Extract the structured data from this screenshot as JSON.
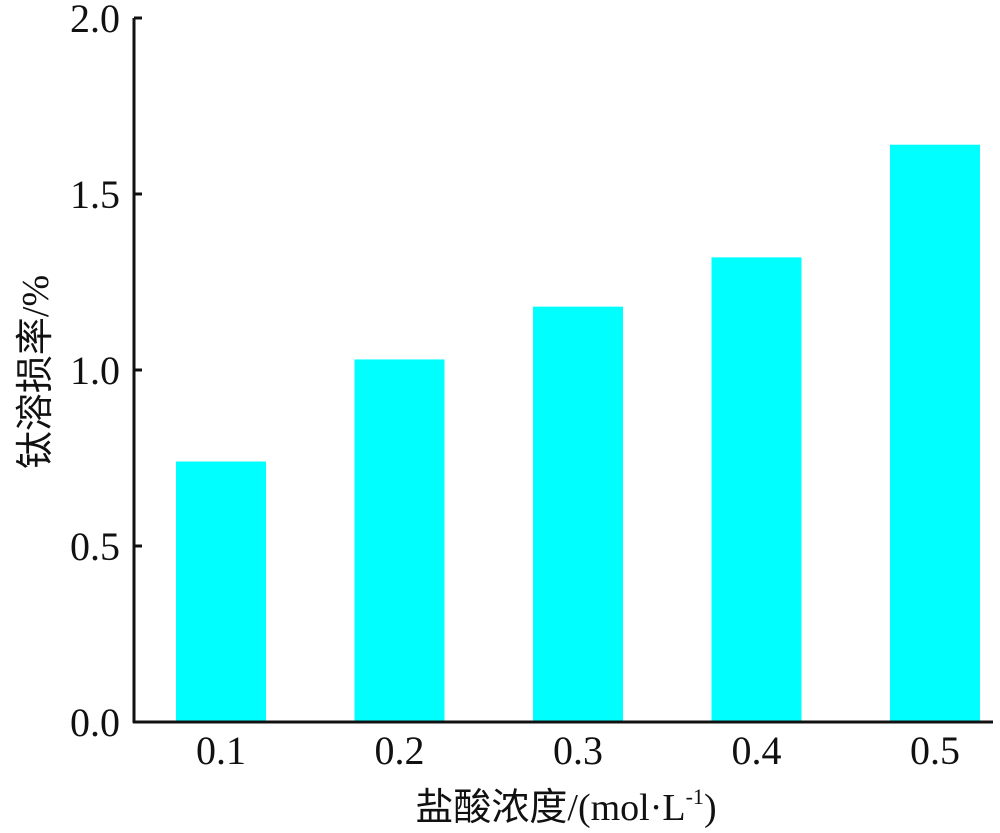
{
  "chart_data": {
    "type": "bar",
    "categories": [
      "0.1",
      "0.2",
      "0.3",
      "0.4",
      "0.5"
    ],
    "values": [
      0.74,
      1.03,
      1.18,
      1.32,
      1.64
    ],
    "xlabel": {
      "main": "盐酸浓度/(mol·L",
      "superscript": "-1",
      "suffix": ")"
    },
    "ylabel": "钛溶损率/%",
    "ylim": [
      0,
      2.0
    ],
    "yticks": [
      0.0,
      0.5,
      1.0,
      1.5,
      2.0
    ],
    "ytick_labels": [
      "0.0",
      "0.5",
      "1.0",
      "1.5",
      "2.0"
    ],
    "bar_color": "#00ffff",
    "axis_color": "#111111",
    "grid": false,
    "legend": "none"
  }
}
